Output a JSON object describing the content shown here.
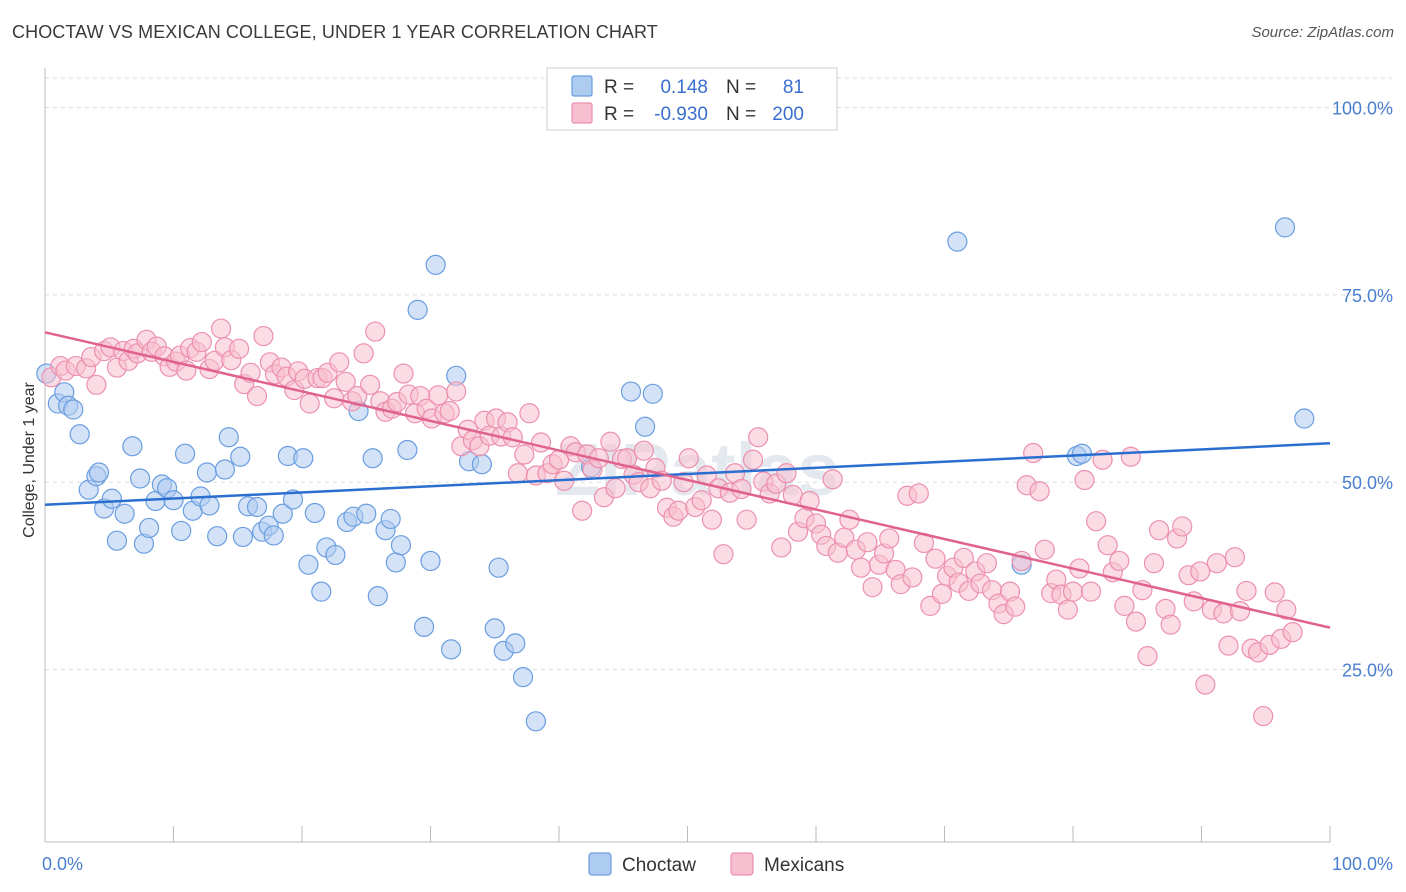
{
  "title": "CHOCTAW VS MEXICAN COLLEGE, UNDER 1 YEAR CORRELATION CHART",
  "source": "Source: ZipAtlas.com",
  "watermark": "ZIPatlas",
  "colors": {
    "choctaw_fill": "#aecbf0",
    "choctaw_stroke": "#6a9ee0",
    "choctaw_line": "#2a6fd0",
    "mexicans_fill": "#f7bfd0",
    "mexicans_stroke": "#ec90ae",
    "mexicans_line": "#e0628f",
    "axis_label": "#4a7fd0",
    "grid": "#dddddd"
  },
  "legend": {
    "rows": [
      {
        "r_label": "R =",
        "r_value": "0.148",
        "n_label": "N =",
        "n_value": "81"
      },
      {
        "r_label": "R =",
        "r_value": "-0.930",
        "n_label": "N =",
        "n_value": "200"
      }
    ]
  },
  "chart_data": {
    "type": "scatter",
    "title": "CHOCTAW VS MEXICAN COLLEGE, UNDER 1 YEAR CORRELATION CHART",
    "xlabel": "",
    "ylabel": "College, Under 1 year",
    "xlim": [
      0,
      100
    ],
    "ylim": [
      2,
      105
    ],
    "x_tick_labels": [
      "0.0%",
      "100.0%"
    ],
    "y_ticks": [
      25,
      50,
      75,
      100
    ],
    "y_tick_labels": [
      "25.0%",
      "50.0%",
      "75.0%",
      "100.0%"
    ],
    "grid": true,
    "legend_placement": "bottom-center",
    "series": [
      {
        "name": "Choctaw",
        "r": 0.148,
        "n": 81,
        "trend": {
          "x": [
            0,
            100
          ],
          "y": [
            47.0,
            55.2
          ]
        },
        "points": [
          [
            0.1,
            64.5
          ],
          [
            1.0,
            60.5
          ],
          [
            1.5,
            62.0
          ],
          [
            1.8,
            60.2
          ],
          [
            2.2,
            59.7
          ],
          [
            2.7,
            56.4
          ],
          [
            3.4,
            49.0
          ],
          [
            4.0,
            50.8
          ],
          [
            4.2,
            51.3
          ],
          [
            4.6,
            46.5
          ],
          [
            5.2,
            47.8
          ],
          [
            5.6,
            42.2
          ],
          [
            6.2,
            45.8
          ],
          [
            6.8,
            54.8
          ],
          [
            7.4,
            50.5
          ],
          [
            7.7,
            41.8
          ],
          [
            8.1,
            43.9
          ],
          [
            8.6,
            47.5
          ],
          [
            9.1,
            49.7
          ],
          [
            9.5,
            49.2
          ],
          [
            10.0,
            47.6
          ],
          [
            10.6,
            43.5
          ],
          [
            10.9,
            53.8
          ],
          [
            11.5,
            46.2
          ],
          [
            12.1,
            48.1
          ],
          [
            12.6,
            51.3
          ],
          [
            12.8,
            46.9
          ],
          [
            13.4,
            42.8
          ],
          [
            14.3,
            56.0
          ],
          [
            14.0,
            51.7
          ],
          [
            15.2,
            53.4
          ],
          [
            15.4,
            42.7
          ],
          [
            15.8,
            46.8
          ],
          [
            16.5,
            46.7
          ],
          [
            16.9,
            43.4
          ],
          [
            17.4,
            44.2
          ],
          [
            17.8,
            42.9
          ],
          [
            18.5,
            45.8
          ],
          [
            18.9,
            53.5
          ],
          [
            19.3,
            47.7
          ],
          [
            20.1,
            53.2
          ],
          [
            20.5,
            39.0
          ],
          [
            21.0,
            45.9
          ],
          [
            21.5,
            35.4
          ],
          [
            21.9,
            41.3
          ],
          [
            22.6,
            40.3
          ],
          [
            23.5,
            44.7
          ],
          [
            24.0,
            45.4
          ],
          [
            24.4,
            59.5
          ],
          [
            25.0,
            45.8
          ],
          [
            25.5,
            53.2
          ],
          [
            25.9,
            34.8
          ],
          [
            26.5,
            43.6
          ],
          [
            26.9,
            45.1
          ],
          [
            27.3,
            39.3
          ],
          [
            27.7,
            41.6
          ],
          [
            28.2,
            54.3
          ],
          [
            29.0,
            73.0
          ],
          [
            29.5,
            30.7
          ],
          [
            30.0,
            39.5
          ],
          [
            30.4,
            79.0
          ],
          [
            31.6,
            27.7
          ],
          [
            32.0,
            64.2
          ],
          [
            33.0,
            52.8
          ],
          [
            34.0,
            52.4
          ],
          [
            35.0,
            30.5
          ],
          [
            35.3,
            38.6
          ],
          [
            35.7,
            27.5
          ],
          [
            36.6,
            28.5
          ],
          [
            37.2,
            24.0
          ],
          [
            38.2,
            18.1
          ],
          [
            45.6,
            62.1
          ],
          [
            46.7,
            57.4
          ],
          [
            47.3,
            61.8
          ],
          [
            71.0,
            82.1
          ],
          [
            80.3,
            53.5
          ],
          [
            80.7,
            53.8
          ],
          [
            96.5,
            84.0
          ],
          [
            98.0,
            58.5
          ],
          [
            76.0,
            39.0
          ],
          [
            42.5,
            52.0
          ]
        ]
      },
      {
        "name": "Mexicans",
        "r": -0.93,
        "n": 200,
        "trend": {
          "x": [
            0,
            100
          ],
          "y": [
            70.0,
            30.6
          ]
        },
        "points": [
          [
            0.5,
            64.0
          ],
          [
            1.2,
            65.5
          ],
          [
            1.6,
            64.9
          ],
          [
            2.4,
            65.5
          ],
          [
            3.2,
            65.2
          ],
          [
            3.6,
            66.7
          ],
          [
            4.0,
            63.0
          ],
          [
            4.6,
            67.5
          ],
          [
            5.1,
            68.0
          ],
          [
            5.6,
            65.3
          ],
          [
            6.1,
            67.5
          ],
          [
            6.5,
            66.2
          ],
          [
            6.9,
            67.8
          ],
          [
            7.2,
            67.2
          ],
          [
            7.9,
            69.0
          ],
          [
            8.3,
            67.4
          ],
          [
            8.7,
            68.1
          ],
          [
            9.3,
            66.8
          ],
          [
            9.7,
            65.4
          ],
          [
            10.2,
            66.1
          ],
          [
            10.5,
            66.9
          ],
          [
            11.0,
            64.9
          ],
          [
            11.3,
            67.9
          ],
          [
            11.8,
            67.4
          ],
          [
            12.2,
            68.7
          ],
          [
            12.8,
            65.1
          ],
          [
            13.2,
            66.2
          ],
          [
            13.7,
            70.5
          ],
          [
            14.0,
            68.0
          ],
          [
            14.5,
            66.3
          ],
          [
            15.1,
            67.8
          ],
          [
            15.5,
            63.1
          ],
          [
            16.0,
            64.6
          ],
          [
            16.5,
            61.5
          ],
          [
            17.0,
            69.5
          ],
          [
            17.5,
            66.0
          ],
          [
            17.9,
            64.4
          ],
          [
            18.4,
            65.3
          ],
          [
            18.8,
            64.1
          ],
          [
            19.4,
            62.3
          ],
          [
            19.7,
            64.8
          ],
          [
            20.2,
            63.8
          ],
          [
            20.6,
            60.5
          ],
          [
            21.2,
            63.9
          ],
          [
            21.6,
            63.9
          ],
          [
            22.0,
            64.6
          ],
          [
            22.5,
            61.2
          ],
          [
            22.9,
            66.0
          ],
          [
            23.4,
            63.4
          ],
          [
            23.9,
            60.8
          ],
          [
            24.3,
            61.5
          ],
          [
            24.8,
            67.2
          ],
          [
            25.3,
            63.0
          ],
          [
            25.7,
            70.1
          ],
          [
            26.1,
            60.8
          ],
          [
            26.5,
            59.4
          ],
          [
            27.0,
            59.8
          ],
          [
            27.4,
            60.7
          ],
          [
            27.9,
            64.5
          ],
          [
            28.3,
            61.7
          ],
          [
            28.8,
            59.2
          ],
          [
            29.2,
            61.5
          ],
          [
            29.7,
            59.8
          ],
          [
            30.1,
            58.5
          ],
          [
            30.6,
            61.6
          ],
          [
            31.1,
            59.2
          ],
          [
            31.5,
            59.5
          ],
          [
            32.0,
            62.1
          ],
          [
            32.4,
            54.8
          ],
          [
            32.9,
            57.0
          ],
          [
            33.3,
            55.6
          ],
          [
            33.8,
            54.8
          ],
          [
            34.2,
            58.2
          ],
          [
            34.6,
            56.2
          ],
          [
            35.1,
            58.5
          ],
          [
            35.5,
            56.1
          ],
          [
            36.0,
            58.0
          ],
          [
            36.4,
            56.0
          ],
          [
            36.8,
            51.2
          ],
          [
            37.3,
            53.7
          ],
          [
            37.7,
            59.2
          ],
          [
            38.2,
            50.9
          ],
          [
            38.6,
            55.3
          ],
          [
            39.1,
            51.2
          ],
          [
            39.5,
            52.4
          ],
          [
            40.0,
            53.0
          ],
          [
            40.4,
            50.2
          ],
          [
            40.9,
            54.8
          ],
          [
            41.3,
            54.0
          ],
          [
            41.8,
            46.2
          ],
          [
            42.2,
            53.7
          ],
          [
            42.6,
            51.7
          ],
          [
            43.1,
            53.2
          ],
          [
            43.5,
            48.0
          ],
          [
            44.0,
            55.4
          ],
          [
            44.4,
            49.2
          ],
          [
            44.9,
            53.1
          ],
          [
            45.3,
            53.2
          ],
          [
            45.8,
            51.0
          ],
          [
            46.2,
            50.0
          ],
          [
            46.6,
            54.2
          ],
          [
            47.1,
            49.2
          ],
          [
            47.5,
            51.9
          ],
          [
            48.0,
            50.2
          ],
          [
            48.4,
            46.6
          ],
          [
            48.9,
            45.4
          ],
          [
            49.3,
            46.2
          ],
          [
            49.7,
            50.0
          ],
          [
            50.1,
            53.2
          ],
          [
            50.6,
            46.7
          ],
          [
            51.1,
            47.6
          ],
          [
            51.5,
            50.9
          ],
          [
            51.9,
            45.0
          ],
          [
            52.4,
            49.2
          ],
          [
            52.8,
            40.4
          ],
          [
            53.3,
            48.6
          ],
          [
            53.7,
            51.2
          ],
          [
            54.2,
            49.1
          ],
          [
            54.6,
            45.0
          ],
          [
            55.1,
            53.0
          ],
          [
            55.5,
            56.0
          ],
          [
            55.9,
            50.1
          ],
          [
            56.4,
            48.5
          ],
          [
            56.9,
            49.8
          ],
          [
            57.3,
            41.3
          ],
          [
            57.7,
            51.2
          ],
          [
            58.2,
            48.3
          ],
          [
            58.6,
            43.4
          ],
          [
            59.1,
            45.2
          ],
          [
            59.5,
            47.5
          ],
          [
            60.0,
            44.5
          ],
          [
            60.4,
            43.0
          ],
          [
            60.8,
            41.5
          ],
          [
            61.3,
            50.4
          ],
          [
            61.7,
            40.6
          ],
          [
            62.2,
            42.6
          ],
          [
            62.6,
            45.0
          ],
          [
            63.1,
            41.0
          ],
          [
            63.5,
            38.6
          ],
          [
            64.0,
            42.0
          ],
          [
            64.4,
            36.0
          ],
          [
            64.9,
            39.0
          ],
          [
            65.3,
            40.5
          ],
          [
            65.7,
            42.5
          ],
          [
            66.2,
            38.3
          ],
          [
            66.6,
            36.4
          ],
          [
            67.1,
            48.2
          ],
          [
            67.5,
            37.3
          ],
          [
            68.0,
            48.5
          ],
          [
            68.4,
            41.9
          ],
          [
            68.9,
            33.5
          ],
          [
            69.3,
            39.8
          ],
          [
            69.8,
            35.1
          ],
          [
            70.2,
            37.5
          ],
          [
            70.7,
            38.6
          ],
          [
            71.1,
            36.6
          ],
          [
            71.5,
            39.9
          ],
          [
            71.9,
            35.5
          ],
          [
            72.4,
            38.1
          ],
          [
            72.8,
            36.5
          ],
          [
            73.3,
            39.2
          ],
          [
            73.7,
            35.6
          ],
          [
            74.2,
            33.8
          ],
          [
            74.6,
            32.4
          ],
          [
            75.1,
            35.4
          ],
          [
            75.5,
            33.4
          ],
          [
            76.0,
            39.5
          ],
          [
            76.4,
            49.6
          ],
          [
            76.9,
            53.9
          ],
          [
            77.4,
            48.8
          ],
          [
            77.8,
            41.0
          ],
          [
            78.3,
            35.2
          ],
          [
            78.7,
            37.0
          ],
          [
            79.1,
            35.0
          ],
          [
            79.6,
            33.0
          ],
          [
            80.0,
            35.4
          ],
          [
            80.5,
            38.5
          ],
          [
            80.9,
            50.3
          ],
          [
            81.4,
            35.4
          ],
          [
            81.8,
            44.8
          ],
          [
            82.3,
            53.0
          ],
          [
            82.7,
            41.6
          ],
          [
            83.1,
            38.0
          ],
          [
            83.6,
            39.5
          ],
          [
            84.0,
            33.5
          ],
          [
            84.5,
            53.4
          ],
          [
            84.9,
            31.4
          ],
          [
            85.4,
            35.6
          ],
          [
            85.8,
            26.8
          ],
          [
            86.3,
            39.2
          ],
          [
            86.7,
            43.6
          ],
          [
            87.2,
            33.1
          ],
          [
            87.6,
            31.0
          ],
          [
            88.1,
            42.5
          ],
          [
            88.5,
            44.1
          ],
          [
            89.0,
            37.6
          ],
          [
            89.4,
            34.1
          ],
          [
            89.9,
            38.1
          ],
          [
            90.3,
            23.0
          ],
          [
            90.8,
            33.0
          ],
          [
            91.2,
            39.2
          ],
          [
            91.7,
            32.5
          ],
          [
            92.1,
            28.2
          ],
          [
            92.6,
            40.0
          ],
          [
            93.0,
            32.8
          ],
          [
            93.5,
            35.5
          ],
          [
            93.9,
            27.8
          ],
          [
            94.4,
            27.3
          ],
          [
            94.8,
            18.8
          ],
          [
            95.3,
            28.3
          ],
          [
            95.7,
            35.3
          ],
          [
            96.2,
            29.1
          ],
          [
            96.6,
            33.0
          ],
          [
            97.1,
            30.0
          ]
        ]
      }
    ]
  }
}
